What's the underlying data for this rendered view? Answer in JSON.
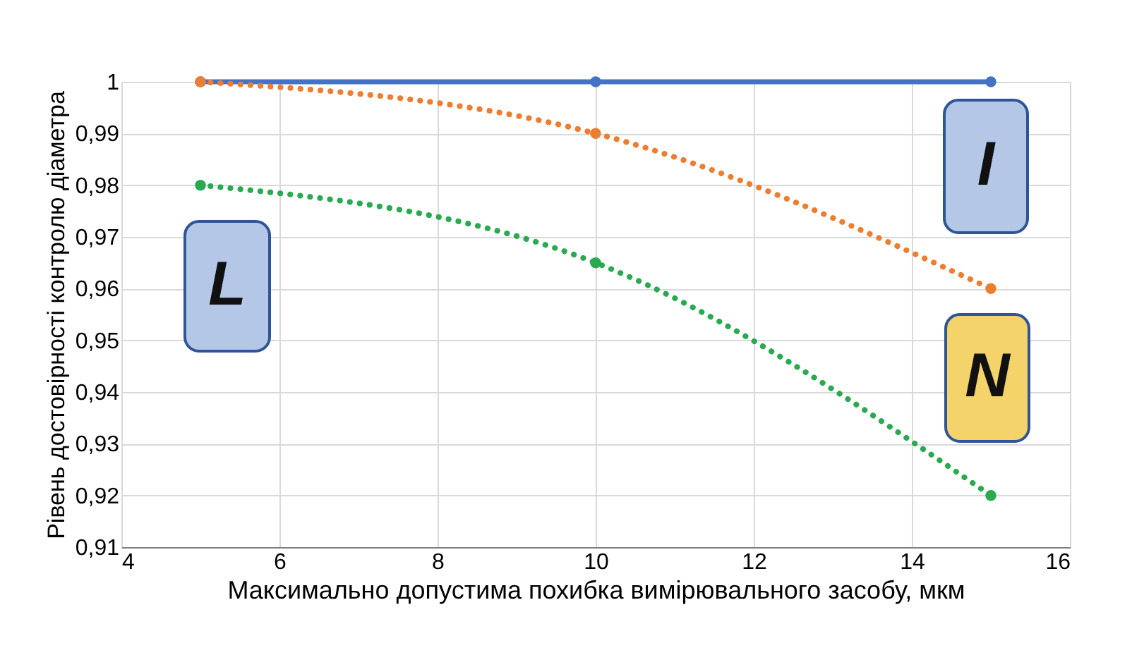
{
  "chart_data": {
    "type": "line",
    "xlabel": "Максимально допустима похибка вимірювального засобу, мкм",
    "ylabel": "Рівень достовірності контролю діаметра",
    "x": [
      5,
      10,
      15
    ],
    "series": [
      {
        "color": "#4472c4",
        "values": [
          1,
          1,
          1
        ],
        "line_style": "solid"
      },
      {
        "color": "#ed7d31",
        "values": [
          1,
          0.99,
          0.96
        ],
        "line_style": "dotted"
      },
      {
        "color": "#2aaa50",
        "values": [
          0.98,
          0.965,
          0.92
        ],
        "line_style": "dotted"
      }
    ],
    "annotations": [
      "L",
      "I",
      "N"
    ],
    "xlim": [
      4,
      16
    ],
    "xticks": [
      4,
      6,
      8,
      10,
      12,
      14,
      16
    ],
    "ylim": [
      0.91,
      1
    ],
    "yticks": [
      {
        "value": 0.91,
        "label": "0,91"
      },
      {
        "value": 0.92,
        "label": "0,92"
      },
      {
        "value": 0.93,
        "label": "0,93"
      },
      {
        "value": 0.94,
        "label": "0,94"
      },
      {
        "value": 0.95,
        "label": "0,95"
      },
      {
        "value": 0.96,
        "label": "0,96"
      },
      {
        "value": 0.97,
        "label": "0,97"
      },
      {
        "value": 0.98,
        "label": "0,98"
      },
      {
        "value": 0.99,
        "label": "0,99"
      },
      {
        "value": 1,
        "label": "1"
      }
    ],
    "grid": true,
    "marker": "circle"
  }
}
